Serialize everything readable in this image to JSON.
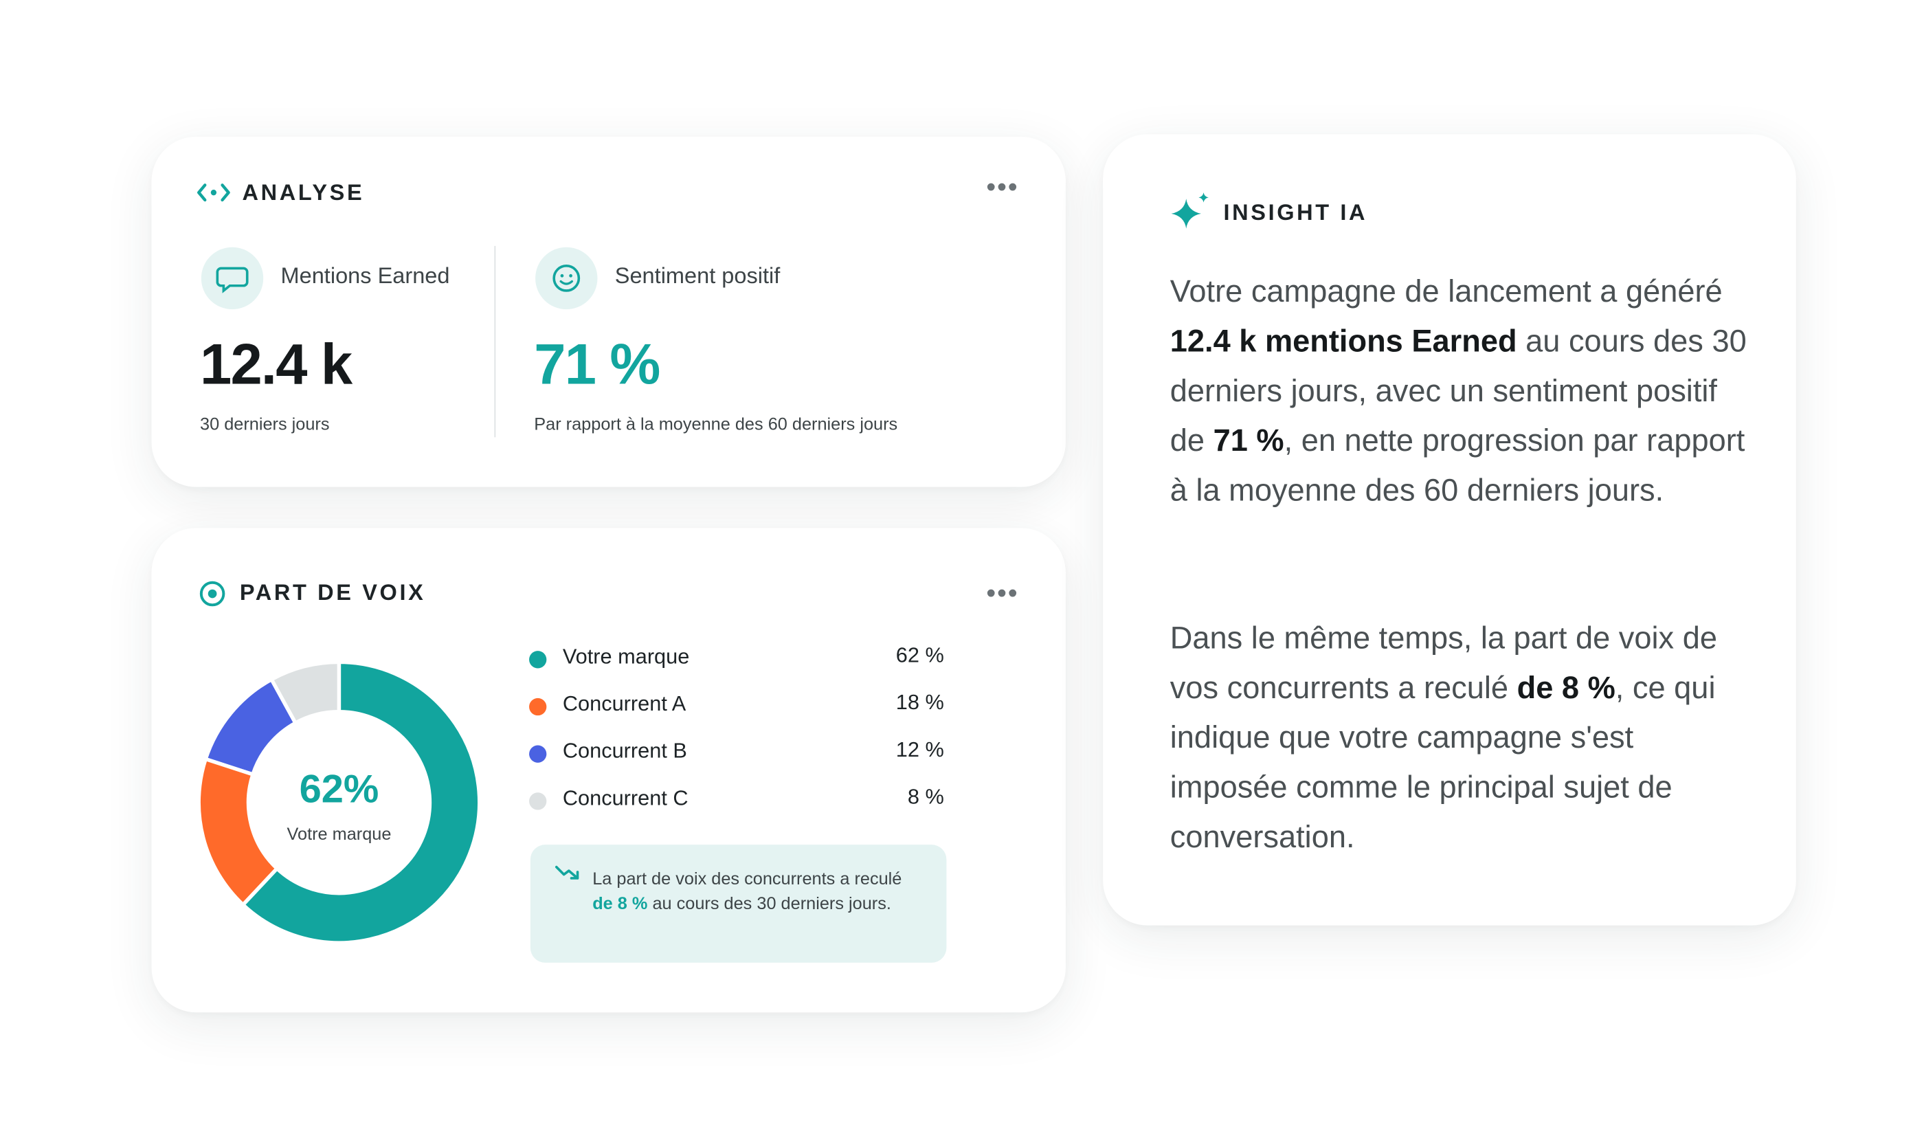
{
  "analyse": {
    "title": "ANALYSE",
    "metrics": [
      {
        "label": "Mentions Earned",
        "value": "12.4 k",
        "caption": "30 derniers jours"
      },
      {
        "label": "Sentiment positif",
        "value": "71 %",
        "caption": "Par rapport à la moyenne des 60 derniers jours"
      }
    ]
  },
  "chart_data": {
    "type": "donut",
    "title": "PART DE VOIX",
    "center_value": "62%",
    "center_label": "Votre marque",
    "categories": [
      "Votre marque",
      "Concurrent A",
      "Concurrent B",
      "Concurrent C"
    ],
    "values": [
      62,
      18,
      12,
      8
    ],
    "value_labels": [
      "62 %",
      "18 %",
      "12 %",
      "8 %"
    ],
    "colors": [
      "#12a59e",
      "#ff6a2a",
      "#4a62e2",
      "#dde1e2"
    ]
  },
  "note": {
    "segments": [
      {
        "text": "La part de voix des concurrents a reculé "
      },
      {
        "text": "de 8 %",
        "bold": true
      },
      {
        "text": " au cours des 30 derniers jours."
      }
    ]
  },
  "insight": {
    "title": "INSIGHT IA",
    "paragraphs": [
      {
        "segments": [
          {
            "text": "Votre campagne de lancement a généré "
          },
          {
            "text": "12.4 k mentions Earned",
            "bold": true
          },
          {
            "text": " au cours des 30 derniers jours, avec un sentiment positif de "
          },
          {
            "text": "71 %",
            "bold": true
          },
          {
            "text": ", en nette progression par rapport à la moyenne des 60 derniers jours."
          }
        ]
      },
      {
        "segments": [
          {
            "text": "Dans le même temps, la part de voix de vos concurrents a reculé "
          },
          {
            "text": "de 8 %",
            "bold": true
          },
          {
            "text": ", ce qui indique que votre campagne s'est imposée comme le principal sujet de conversation."
          }
        ]
      }
    ]
  }
}
